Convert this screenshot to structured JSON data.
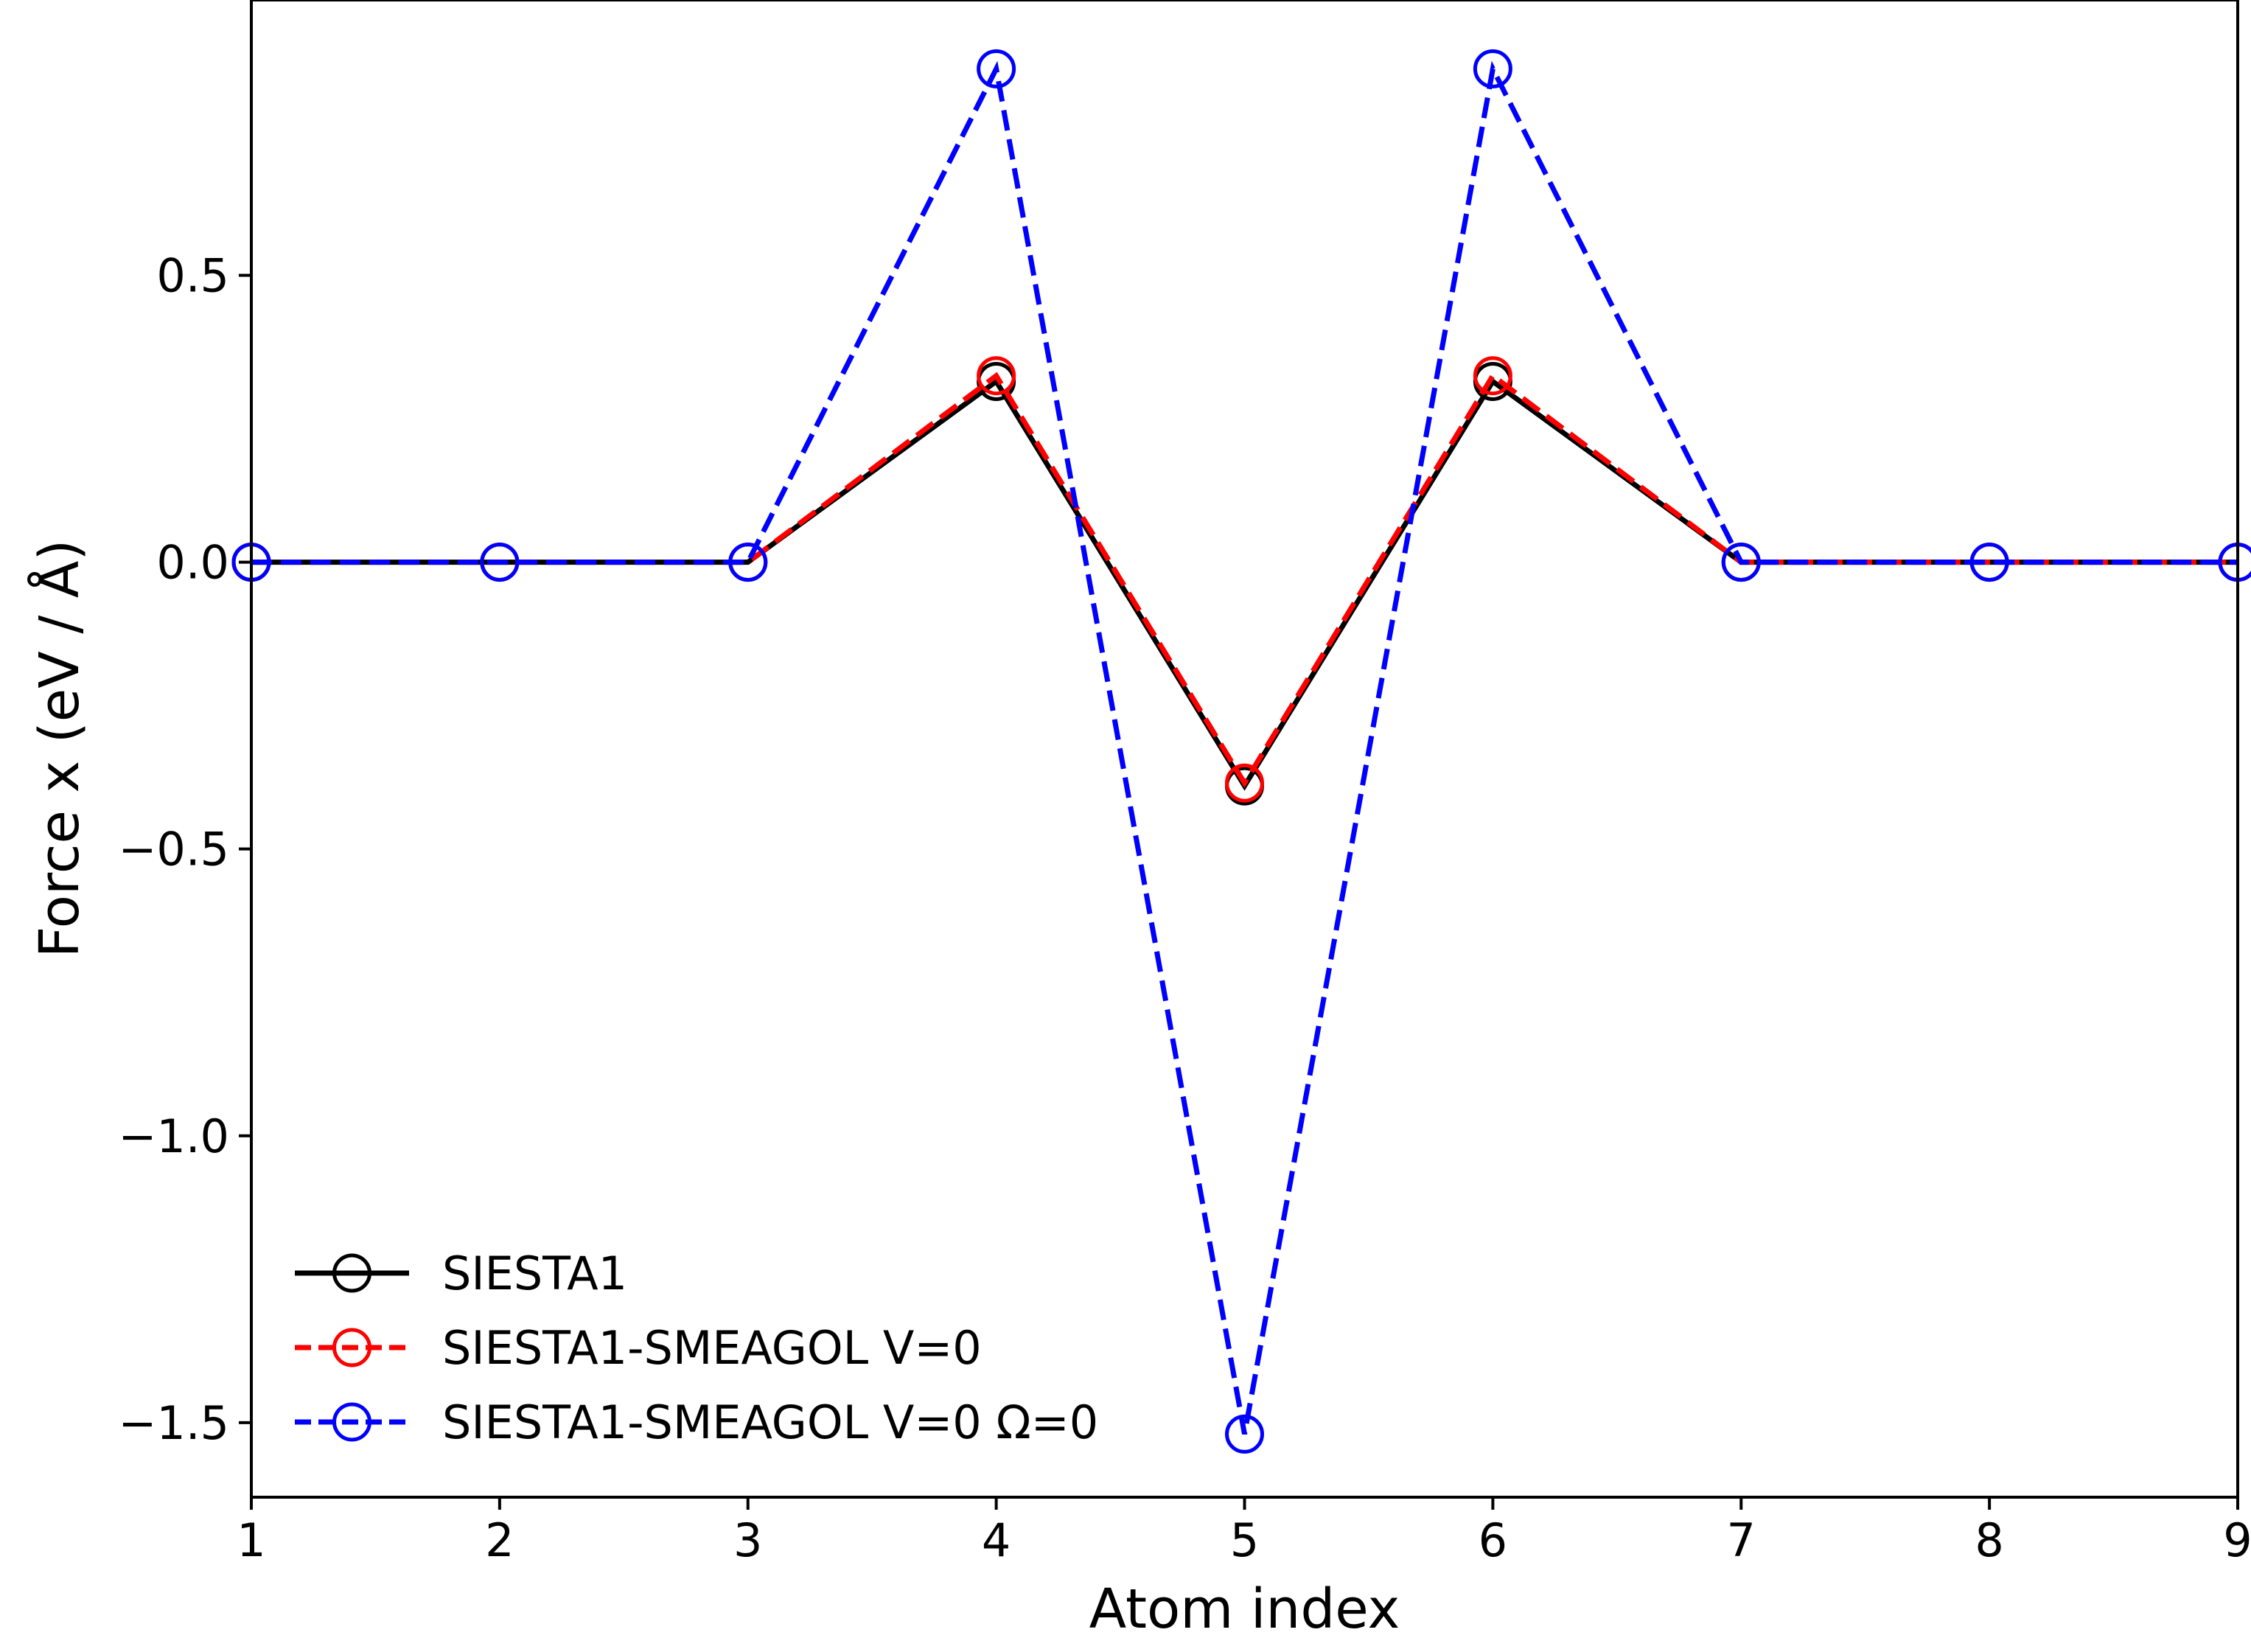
{
  "chart_data": {
    "type": "line",
    "title": "",
    "xlabel": "Atom index",
    "ylabel": "Force x (eV / Å)",
    "xlim": [
      1,
      9
    ],
    "ylim": [
      -1.63,
      0.98
    ],
    "x_ticks": [
      1,
      2,
      3,
      4,
      5,
      6,
      7,
      8,
      9
    ],
    "x_tick_labels": [
      "1",
      "2",
      "3",
      "4",
      "5",
      "6",
      "7",
      "8",
      "9"
    ],
    "y_ticks": [
      -1.5,
      -1.0,
      -0.5,
      0.0,
      0.5
    ],
    "y_tick_labels": [
      "−1.5",
      "−1.0",
      "−0.5",
      "0.0",
      "0.5"
    ],
    "grid": false,
    "legend_position": "lower-left",
    "x": [
      1,
      2,
      3,
      4,
      5,
      6,
      7,
      8,
      9
    ],
    "series": [
      {
        "name": "SIESTA1",
        "color": "#000000",
        "linestyle": "solid",
        "marker": "open-circle",
        "values": [
          0.0,
          0.0,
          0.0,
          0.315,
          -0.39,
          0.315,
          0.0,
          0.0,
          0.0
        ]
      },
      {
        "name": "SIESTA1-SMEAGOL V=0",
        "color": "#ff0000",
        "linestyle": "dashed",
        "marker": "open-circle",
        "values": [
          0.0,
          0.0,
          0.0,
          0.325,
          -0.385,
          0.325,
          0.0,
          0.0,
          0.0
        ]
      },
      {
        "name": "SIESTA1-SMEAGOL V=0 Ω=0",
        "color": "#0000ff",
        "linestyle": "dashed",
        "marker": "open-circle",
        "values": [
          0.0,
          0.0,
          0.0,
          0.86,
          -1.52,
          0.86,
          0.0,
          0.0,
          0.0
        ]
      }
    ]
  }
}
